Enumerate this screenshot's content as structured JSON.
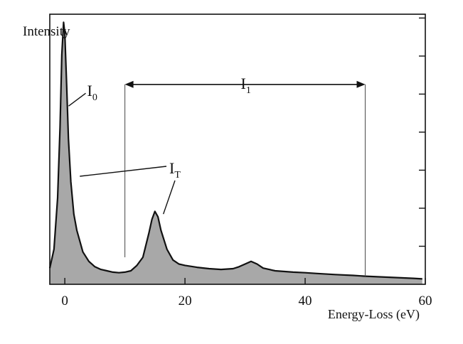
{
  "chart_data": {
    "type": "area",
    "title": "",
    "xlabel": "Energy-Loss (eV)",
    "ylabel": "Intensity",
    "xlim": [
      -2.5,
      60
    ],
    "ylim": [
      0,
      1
    ],
    "x_ticks": [
      0,
      20,
      40,
      60
    ],
    "y_tick_count": 7,
    "grid": false,
    "legend": "none",
    "fill_color": "#a8a8a8",
    "line_color": "#111111",
    "series": [
      {
        "x": [
          -2.5,
          -1.8,
          -1.2,
          -0.8,
          -0.5,
          -0.2,
          0,
          0.3,
          0.6,
          1.0,
          1.5,
          2,
          3,
          4,
          5,
          6,
          7,
          8,
          9,
          10,
          11,
          12,
          13,
          14,
          14.5,
          15,
          15.5,
          16,
          17,
          18,
          19,
          20,
          22,
          24,
          26,
          28,
          29,
          30,
          31,
          32,
          33,
          35,
          38,
          40,
          42,
          45,
          48,
          50,
          52,
          55,
          58,
          59.5
        ],
        "y": [
          0.06,
          0.13,
          0.32,
          0.58,
          0.85,
          0.97,
          0.93,
          0.74,
          0.54,
          0.38,
          0.26,
          0.2,
          0.12,
          0.085,
          0.065,
          0.055,
          0.05,
          0.045,
          0.043,
          0.045,
          0.05,
          0.07,
          0.1,
          0.19,
          0.24,
          0.27,
          0.25,
          0.2,
          0.13,
          0.09,
          0.075,
          0.07,
          0.063,
          0.058,
          0.055,
          0.058,
          0.065,
          0.075,
          0.085,
          0.075,
          0.06,
          0.05,
          0.045,
          0.043,
          0.04,
          0.036,
          0.033,
          0.03,
          0.028,
          0.025,
          0.022,
          0.02
        ]
      }
    ],
    "annotations": {
      "i0": {
        "main": "I",
        "sub": "0",
        "x": 0.4,
        "y": 0.66
      },
      "it": {
        "main": "I",
        "sub": "T",
        "targets": [
          {
            "x": 2.5,
            "y": 0.4
          },
          {
            "x": 16.4,
            "y": 0.26
          }
        ]
      },
      "i1": {
        "main": "I",
        "sub": "1",
        "x_from": 10,
        "x_to": 50,
        "y": 0.74
      }
    }
  }
}
